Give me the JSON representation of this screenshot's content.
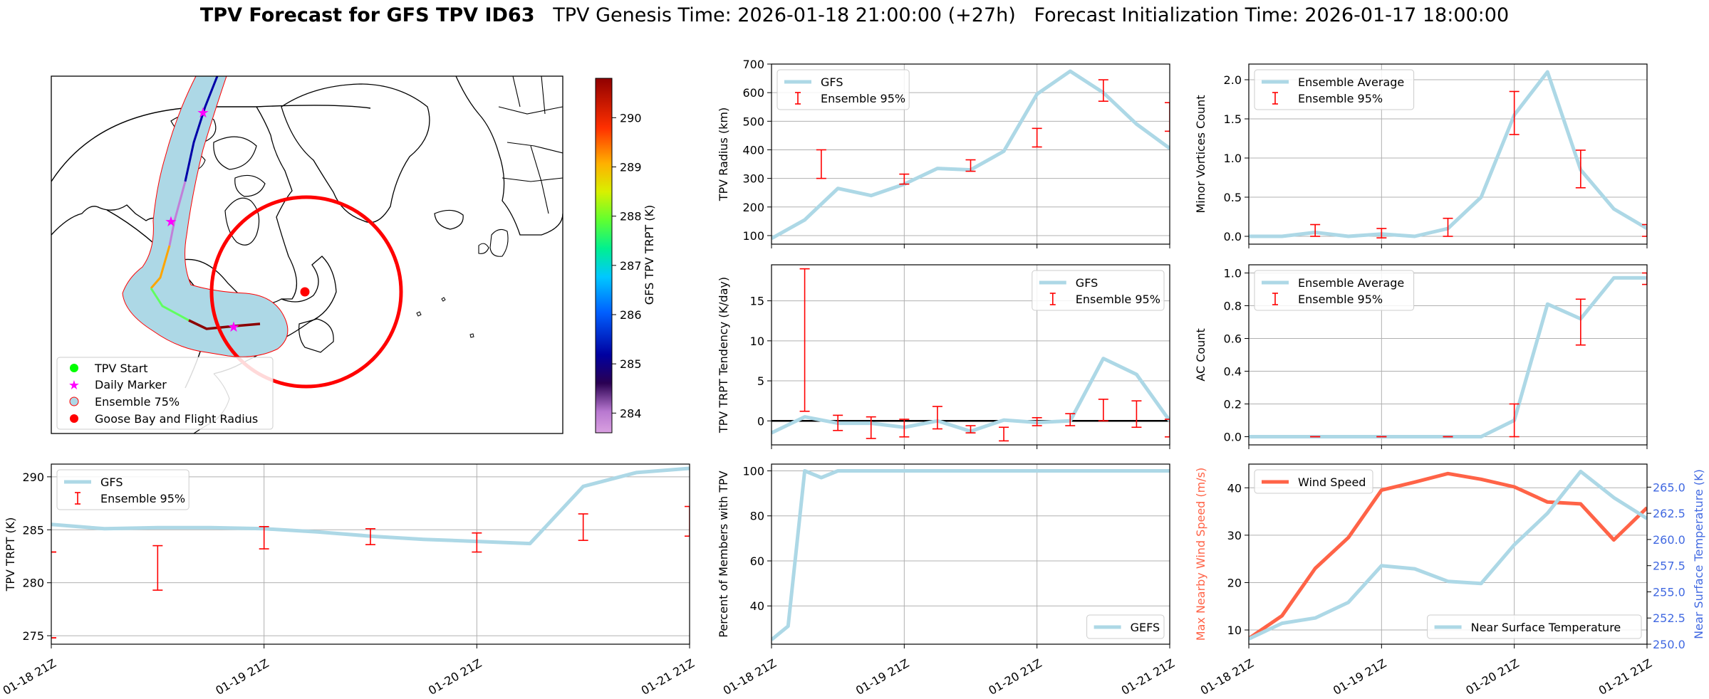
{
  "figure": {
    "title_bold": "TPV Forecast for GFS TPV ID63",
    "title_rest": "   TPV Genesis Time: 2026-01-18 21:00:00 (+27h)   Forecast Initialization Time: 2026-01-17 18:00:00"
  },
  "colors": {
    "light_blue": "#add8e6",
    "red": "#ff0000",
    "tomato": "#ff6347",
    "royal_blue": "#4169e1",
    "black": "#000000",
    "grid": "#b0b0b0"
  },
  "x_ticks": [
    "01-18 21Z",
    "01-19 21Z",
    "01-20 21Z",
    "01-21 21Z"
  ],
  "map": {
    "colorbar_label": "GFS TPV TRPT (K)",
    "colorbar_ticks": [
      284,
      285,
      286,
      287,
      288,
      289,
      290
    ],
    "colorbar_range": [
      283.6,
      290.8
    ],
    "legend": [
      {
        "label": "TPV Start",
        "kind": "dot",
        "color": "#00ff00"
      },
      {
        "label": "Daily Marker",
        "kind": "star",
        "color": "#ff00ff"
      },
      {
        "label": "Ensemble 75%",
        "kind": "patch",
        "color": "#add8e6"
      },
      {
        "label": "Goose Bay and Flight Radius",
        "kind": "dot",
        "color": "#ff0000"
      }
    ]
  },
  "chart_data": [
    {
      "id": "radius",
      "type": "line",
      "ylabel": "TPV Radius (km)",
      "ylim": [
        70,
        700
      ],
      "yticks": [
        100,
        200,
        300,
        400,
        500,
        600,
        700
      ],
      "legend_pos": "top-left",
      "series": [
        {
          "name": "GFS",
          "color": "#add8e6",
          "x": [
            0,
            0.25,
            0.5,
            0.75,
            1,
            1.25,
            1.5,
            1.75,
            2,
            2.25,
            2.5,
            2.75,
            3
          ],
          "values": [
            90,
            155,
            265,
            240,
            280,
            335,
            330,
            395,
            595,
            675,
            600,
            490,
            405
          ]
        }
      ],
      "errorbars": {
        "name": "Ensemble 95%",
        "color": "#ff0000",
        "items": [
          {
            "x": 0.375,
            "lo": 300,
            "hi": 400
          },
          {
            "x": 1,
            "lo": 280,
            "hi": 315
          },
          {
            "x": 1.5,
            "lo": 325,
            "hi": 365
          },
          {
            "x": 2,
            "lo": 410,
            "hi": 475
          },
          {
            "x": 2.5,
            "lo": 570,
            "hi": 645
          },
          {
            "x": 3,
            "lo": 465,
            "hi": 565
          }
        ]
      },
      "hline": null
    },
    {
      "id": "minor",
      "type": "line",
      "ylabel": "Minor Vortices Count",
      "ylim": [
        -0.1,
        2.2
      ],
      "yticks": [
        0.0,
        0.5,
        1.0,
        1.5,
        2.0
      ],
      "tick_decimals": 1,
      "legend_pos": "top-left",
      "series": [
        {
          "name": "Ensemble Average",
          "color": "#add8e6",
          "x": [
            0,
            0.25,
            0.5,
            0.75,
            1,
            1.25,
            1.5,
            1.75,
            2,
            2.25,
            2.5,
            2.75,
            3
          ],
          "values": [
            0,
            0,
            0.05,
            0,
            0.03,
            0,
            0.1,
            0.5,
            1.55,
            2.1,
            0.85,
            0.35,
            0.1
          ]
        }
      ],
      "errorbars": {
        "name": "Ensemble 95%",
        "color": "#ff0000",
        "items": [
          {
            "x": 0.5,
            "lo": 0,
            "hi": 0.15
          },
          {
            "x": 1,
            "lo": -0.02,
            "hi": 0.1
          },
          {
            "x": 1.5,
            "lo": 0,
            "hi": 0.23
          },
          {
            "x": 2,
            "lo": 1.3,
            "hi": 1.85
          },
          {
            "x": 2.5,
            "lo": 0.62,
            "hi": 1.1
          },
          {
            "x": 3,
            "lo": 0,
            "hi": 0.15
          }
        ]
      },
      "hline": null
    },
    {
      "id": "tendency",
      "type": "line",
      "ylabel": "TPV TRPT Tendency (K/day)",
      "ylim": [
        -3.0,
        19.5
      ],
      "yticks": [
        0,
        5,
        10,
        15
      ],
      "legend_pos": "top-right",
      "series": [
        {
          "name": "GFS",
          "color": "#add8e6",
          "x": [
            0,
            0.25,
            0.5,
            0.75,
            1,
            1.25,
            1.5,
            1.75,
            2,
            2.25,
            2.5,
            2.75,
            3
          ],
          "values": [
            -1.5,
            0.5,
            -0.3,
            -0.3,
            -0.8,
            0,
            -1.3,
            0.1,
            -0.2,
            0,
            7.8,
            5.8,
            0
          ]
        }
      ],
      "errorbars": {
        "name": "Ensemble 95%",
        "color": "#ff0000",
        "items": [
          {
            "x": 0.25,
            "lo": 1.2,
            "hi": 19
          },
          {
            "x": 0.5,
            "lo": -1.2,
            "hi": 0.7
          },
          {
            "x": 0.75,
            "lo": -2.2,
            "hi": 0.5
          },
          {
            "x": 1,
            "lo": -2.0,
            "hi": 0.2
          },
          {
            "x": 1.25,
            "lo": -1.0,
            "hi": 1.8
          },
          {
            "x": 1.5,
            "lo": -1.5,
            "hi": -0.6
          },
          {
            "x": 1.75,
            "lo": -2.5,
            "hi": -0.8
          },
          {
            "x": 2,
            "lo": -0.6,
            "hi": 0.4
          },
          {
            "x": 2.25,
            "lo": -0.6,
            "hi": 0.9
          },
          {
            "x": 2.5,
            "lo": 0,
            "hi": 2.7
          },
          {
            "x": 2.75,
            "lo": -0.8,
            "hi": 2.5
          },
          {
            "x": 3,
            "lo": -2.0,
            "hi": 0.2
          }
        ]
      },
      "hline": {
        "y": 0,
        "color": "#000000"
      }
    },
    {
      "id": "ac",
      "type": "line",
      "ylabel": "AC Count",
      "ylim": [
        -0.05,
        1.05
      ],
      "yticks": [
        0.0,
        0.2,
        0.4,
        0.6,
        0.8,
        1.0
      ],
      "tick_decimals": 1,
      "legend_pos": "top-left",
      "series": [
        {
          "name": "Ensemble Average",
          "color": "#add8e6",
          "x": [
            0,
            0.25,
            0.5,
            0.75,
            1,
            1.25,
            1.5,
            1.75,
            2,
            2.25,
            2.5,
            2.75,
            3
          ],
          "values": [
            0,
            0,
            0,
            0,
            0,
            0,
            0,
            0,
            0.1,
            0.81,
            0.72,
            0.97,
            0.97
          ]
        }
      ],
      "errorbars": {
        "name": "Ensemble 95%",
        "color": "#ff0000",
        "items": [
          {
            "x": 0.5,
            "lo": 0,
            "hi": 0
          },
          {
            "x": 1,
            "lo": 0,
            "hi": 0
          },
          {
            "x": 1.5,
            "lo": 0,
            "hi": 0
          },
          {
            "x": 2,
            "lo": 0,
            "hi": 0.2
          },
          {
            "x": 2.5,
            "lo": 0.56,
            "hi": 0.84
          },
          {
            "x": 3,
            "lo": 0.93,
            "hi": 1.0
          }
        ]
      },
      "hline": null
    },
    {
      "id": "trpt",
      "type": "line",
      "ylabel": "TPV TRPT (K)",
      "ylim": [
        274.2,
        291.2
      ],
      "yticks": [
        275,
        280,
        285,
        290
      ],
      "legend_pos": "top-left",
      "series": [
        {
          "name": "GFS",
          "color": "#add8e6",
          "x": [
            0,
            0.25,
            0.5,
            0.75,
            1,
            1.25,
            1.5,
            1.75,
            2,
            2.25,
            2.5,
            2.75,
            3
          ],
          "values": [
            285.5,
            285.1,
            285.2,
            285.2,
            285.1,
            284.8,
            284.4,
            284.1,
            283.9,
            283.7,
            289.1,
            290.4,
            290.8
          ]
        }
      ],
      "errorbars": {
        "name": "Ensemble 95%",
        "color": "#ff0000",
        "items": [
          {
            "x": 0,
            "lo": 282.9,
            "hi": 282.9
          },
          {
            "x": 0,
            "lo": 274.8,
            "hi": 274.8
          },
          {
            "x": 0.5,
            "lo": 279.3,
            "hi": 283.5
          },
          {
            "x": 1,
            "lo": 283.2,
            "hi": 285.3
          },
          {
            "x": 1.5,
            "lo": 283.6,
            "hi": 285.1
          },
          {
            "x": 2,
            "lo": 282.9,
            "hi": 284.7
          },
          {
            "x": 2.5,
            "lo": 284.0,
            "hi": 286.5
          },
          {
            "x": 3,
            "lo": 284.4,
            "hi": 287.2
          }
        ]
      },
      "hline": null
    },
    {
      "id": "percent",
      "type": "line",
      "ylabel": "Percent of Members with TPV",
      "ylim": [
        23,
        103
      ],
      "yticks": [
        40,
        60,
        80,
        100
      ],
      "legend_pos": "bottom-right",
      "series": [
        {
          "name": "GEFS",
          "color": "#add8e6",
          "x": [
            0,
            0.125,
            0.25,
            0.375,
            0.5,
            0.75,
            1,
            1.25,
            1.5,
            1.75,
            2,
            2.25,
            2.5,
            2.75,
            3
          ],
          "values": [
            25,
            31,
            100,
            97,
            100,
            100,
            100,
            100,
            100,
            100,
            100,
            100,
            100,
            100,
            100
          ]
        }
      ],
      "errorbars": null,
      "hline": null
    },
    {
      "id": "wind_temp",
      "type": "line",
      "ylabel": "Max Nearby Wind Speed (m/s)",
      "ylabel_color": "#ff6347",
      "ylim": [
        7,
        45
      ],
      "yticks": [
        10,
        20,
        30,
        40
      ],
      "y2label": "Near Surface Temperature (K)",
      "y2label_color": "#4169e1",
      "y2lim": [
        250,
        267.2
      ],
      "y2ticks": [
        250.0,
        252.5,
        255.0,
        257.5,
        260.0,
        262.5,
        265.0
      ],
      "y2_decimals": 1,
      "series": [
        {
          "name": "Wind Speed",
          "color": "#ff6347",
          "axis": "left",
          "legend_pos": "top-left",
          "x": [
            0,
            0.25,
            0.5,
            0.75,
            1,
            1.25,
            1.5,
            1.75,
            2,
            2.25,
            2.5,
            2.75,
            3
          ],
          "values": [
            8.2,
            13,
            23,
            29.5,
            39.5,
            41.2,
            43,
            41.8,
            40.2,
            37,
            36.6,
            29,
            35.8
          ]
        },
        {
          "name": "Near Surface Temperature",
          "color": "#add8e6",
          "axis": "right",
          "legend_pos": "bottom-right",
          "x": [
            0,
            0.25,
            0.5,
            0.75,
            1,
            1.25,
            1.5,
            1.75,
            2,
            2.25,
            2.5,
            2.75,
            3
          ],
          "values": [
            250.5,
            252,
            252.5,
            254,
            257.5,
            257.2,
            256,
            255.8,
            259.5,
            262.5,
            266.5,
            264,
            262
          ]
        }
      ],
      "errorbars": null,
      "hline": null
    }
  ]
}
